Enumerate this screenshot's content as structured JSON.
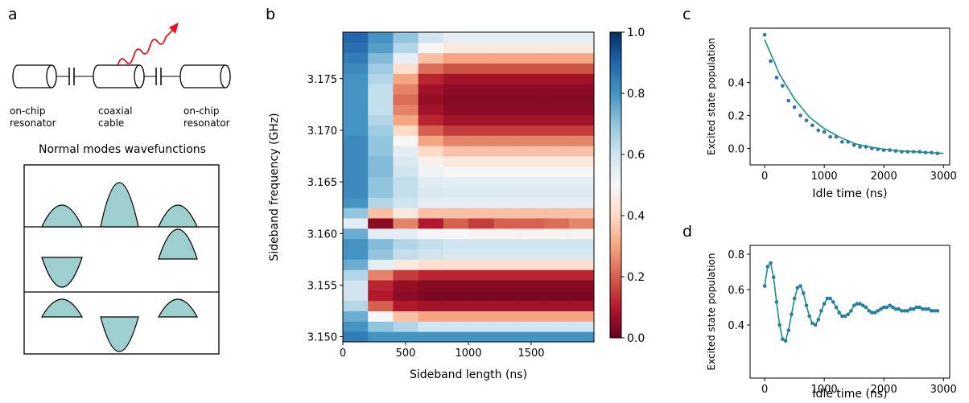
{
  "diagram": {
    "panel_label": "a",
    "labels": [
      "on-chip\nresonator",
      "coaxial\ncable",
      "on-chip\nresonator"
    ],
    "subtitle": "Normal modes wavefunctions"
  },
  "chart_data": [
    {
      "type": "heatmap",
      "panel_label": "b",
      "xlabel": "Sideband length (ns)",
      "ylabel": "Sideband frequency (GHz)",
      "x": [
        100,
        300,
        500,
        700,
        900,
        1100,
        1300,
        1500,
        1700,
        1900
      ],
      "y": [
        3.15,
        3.151,
        3.152,
        3.153,
        3.154,
        3.155,
        3.156,
        3.157,
        3.158,
        3.159,
        3.16,
        3.161,
        3.162,
        3.163,
        3.164,
        3.165,
        3.166,
        3.167,
        3.168,
        3.169,
        3.17,
        3.171,
        3.172,
        3.173,
        3.174,
        3.175,
        3.176,
        3.177,
        3.178,
        3.179
      ],
      "z": [
        [
          0.85,
          0.8,
          0.8,
          0.8,
          0.8,
          0.8,
          0.8,
          0.8,
          0.8,
          0.8
        ],
        [
          0.8,
          0.7,
          0.65,
          0.6,
          0.6,
          0.6,
          0.6,
          0.6,
          0.6,
          0.6
        ],
        [
          0.75,
          0.5,
          0.35,
          0.3,
          0.3,
          0.3,
          0.3,
          0.3,
          0.3,
          0.3
        ],
        [
          0.65,
          0.2,
          0.1,
          0.08,
          0.08,
          0.08,
          0.08,
          0.08,
          0.08,
          0.08
        ],
        [
          0.6,
          0.1,
          0.05,
          0.03,
          0.03,
          0.03,
          0.03,
          0.03,
          0.03,
          0.03
        ],
        [
          0.6,
          0.12,
          0.06,
          0.04,
          0.04,
          0.04,
          0.04,
          0.04,
          0.04,
          0.04
        ],
        [
          0.65,
          0.25,
          0.15,
          0.12,
          0.12,
          0.12,
          0.12,
          0.12,
          0.12,
          0.12
        ],
        [
          0.75,
          0.55,
          0.45,
          0.42,
          0.42,
          0.42,
          0.42,
          0.42,
          0.42,
          0.42
        ],
        [
          0.8,
          0.7,
          0.62,
          0.6,
          0.58,
          0.58,
          0.58,
          0.58,
          0.58,
          0.58
        ],
        [
          0.8,
          0.72,
          0.65,
          0.62,
          0.6,
          0.6,
          0.6,
          0.6,
          0.6,
          0.6
        ],
        [
          0.75,
          0.55,
          0.55,
          0.5,
          0.5,
          0.48,
          0.48,
          0.48,
          0.48,
          0.48
        ],
        [
          0.55,
          0.05,
          0.25,
          0.1,
          0.2,
          0.15,
          0.2,
          0.2,
          0.22,
          0.25
        ],
        [
          0.7,
          0.35,
          0.45,
          0.35,
          0.35,
          0.35,
          0.35,
          0.35,
          0.35,
          0.35
        ],
        [
          0.8,
          0.65,
          0.6,
          0.55,
          0.55,
          0.55,
          0.55,
          0.55,
          0.55,
          0.55
        ],
        [
          0.82,
          0.7,
          0.62,
          0.58,
          0.57,
          0.57,
          0.57,
          0.57,
          0.57,
          0.57
        ],
        [
          0.82,
          0.7,
          0.62,
          0.56,
          0.55,
          0.55,
          0.55,
          0.55,
          0.55,
          0.55
        ],
        [
          0.82,
          0.72,
          0.6,
          0.52,
          0.5,
          0.5,
          0.5,
          0.5,
          0.5,
          0.5
        ],
        [
          0.82,
          0.72,
          0.58,
          0.48,
          0.45,
          0.45,
          0.45,
          0.45,
          0.45,
          0.45
        ],
        [
          0.82,
          0.7,
          0.55,
          0.4,
          0.35,
          0.35,
          0.35,
          0.35,
          0.35,
          0.35
        ],
        [
          0.82,
          0.7,
          0.5,
          0.3,
          0.25,
          0.25,
          0.25,
          0.25,
          0.25,
          0.25
        ],
        [
          0.8,
          0.68,
          0.4,
          0.2,
          0.15,
          0.15,
          0.15,
          0.15,
          0.15,
          0.15
        ],
        [
          0.8,
          0.65,
          0.3,
          0.12,
          0.08,
          0.08,
          0.08,
          0.08,
          0.08,
          0.08
        ],
        [
          0.8,
          0.62,
          0.25,
          0.08,
          0.05,
          0.05,
          0.05,
          0.05,
          0.05,
          0.05
        ],
        [
          0.8,
          0.62,
          0.22,
          0.06,
          0.04,
          0.04,
          0.04,
          0.04,
          0.04,
          0.04
        ],
        [
          0.8,
          0.62,
          0.25,
          0.08,
          0.05,
          0.05,
          0.05,
          0.05,
          0.05,
          0.05
        ],
        [
          0.8,
          0.65,
          0.3,
          0.12,
          0.08,
          0.08,
          0.08,
          0.08,
          0.08,
          0.08
        ],
        [
          0.82,
          0.68,
          0.42,
          0.22,
          0.18,
          0.18,
          0.18,
          0.18,
          0.18,
          0.18
        ],
        [
          0.85,
          0.72,
          0.55,
          0.35,
          0.3,
          0.3,
          0.3,
          0.3,
          0.3,
          0.3
        ],
        [
          0.88,
          0.78,
          0.65,
          0.5,
          0.45,
          0.45,
          0.45,
          0.45,
          0.45,
          0.45
        ],
        [
          0.9,
          0.8,
          0.7,
          0.6,
          0.55,
          0.55,
          0.55,
          0.55,
          0.55,
          0.55
        ]
      ],
      "xlim": [
        0,
        2000
      ],
      "ylim": [
        3.1495,
        3.1795
      ],
      "xticks": [
        0,
        500,
        1000,
        1500
      ],
      "yticks": [
        {
          "value": 3.15,
          "label": "3.150"
        },
        {
          "value": 3.155,
          "label": "3.155"
        },
        {
          "value": 3.16,
          "label": "3.160"
        },
        {
          "value": 3.165,
          "label": "3.165"
        },
        {
          "value": 3.17,
          "label": "3.170"
        },
        {
          "value": 3.175,
          "label": "3.175"
        }
      ],
      "zlim": [
        0,
        1
      ],
      "zticks": [
        {
          "value": 0,
          "label": "0.0"
        },
        {
          "value": 0.2,
          "label": "0.2"
        },
        {
          "value": 0.4,
          "label": "0.4"
        },
        {
          "value": 0.6,
          "label": "0.6"
        },
        {
          "value": 0.8,
          "label": "0.8"
        },
        {
          "value": 1,
          "label": "1.0"
        }
      ],
      "colorscale": [
        "#67001f",
        "#b2182b",
        "#d6604d",
        "#f4a582",
        "#fddbc7",
        "#f7f7f7",
        "#d1e5f0",
        "#92c5de",
        "#4393c3",
        "#2166ac",
        "#053061"
      ]
    },
    {
      "type": "scatter",
      "panel_label": "c",
      "xlabel": "Idle time (ns)",
      "ylabel": "Excited state population",
      "xlim": [
        -245,
        3105
      ],
      "ylim": [
        -0.1,
        0.73
      ],
      "xticks": [
        0,
        1000,
        2000,
        3000
      ],
      "yticks": [
        {
          "value": 0,
          "label": "0.0"
        },
        {
          "value": 0.2,
          "label": "0.2"
        },
        {
          "value": 0.4,
          "label": "0.4"
        }
      ],
      "series": [
        {
          "mode": "markers",
          "color": "#2f6fbf",
          "x": [
            0,
            100,
            200,
            300,
            400,
            500,
            600,
            700,
            800,
            900,
            1000,
            1100,
            1200,
            1300,
            1400,
            1500,
            1600,
            1700,
            1800,
            1900,
            2000,
            2100,
            2200,
            2300,
            2400,
            2500,
            2600,
            2700,
            2800,
            2900
          ],
          "values": [
            0.69,
            0.53,
            0.43,
            0.38,
            0.29,
            0.25,
            0.2,
            0.17,
            0.14,
            0.11,
            0.1,
            0.07,
            0.07,
            0.04,
            0.04,
            0.02,
            0.01,
            0.01,
            0,
            -0.005,
            -0.01,
            -0.01,
            -0.015,
            -0.02,
            -0.02,
            -0.02,
            -0.02,
            -0.025,
            -0.025,
            -0.03
          ]
        },
        {
          "mode": "line",
          "color": "#14937a",
          "x": [
            0,
            250,
            500,
            750,
            1000,
            1250,
            1500,
            1750,
            2000,
            2250,
            2500,
            2750,
            3000
          ],
          "values": [
            0.66,
            0.45,
            0.3,
            0.19,
            0.12,
            0.07,
            0.03,
            0.01,
            -0.005,
            -0.015,
            -0.02,
            -0.025,
            -0.03
          ]
        }
      ]
    },
    {
      "type": "scatter",
      "panel_label": "d",
      "xlabel": "Idle time (ns)",
      "ylabel": "Excited state population",
      "xlim": [
        -245,
        3105
      ],
      "ylim": [
        0.1,
        0.85
      ],
      "xticks": [
        0,
        1000,
        2000,
        3000
      ],
      "yticks": [
        {
          "value": 0.4,
          "label": "0.4"
        },
        {
          "value": 0.6,
          "label": "0.6"
        },
        {
          "value": 0.8,
          "label": "0.8"
        }
      ],
      "series": [
        {
          "mode": "markers",
          "color": "#2f6fbf",
          "x": [
            0,
            50,
            100,
            150,
            200,
            250,
            300,
            350,
            400,
            450,
            500,
            550,
            600,
            650,
            700,
            750,
            800,
            850,
            900,
            950,
            1000,
            1050,
            1100,
            1150,
            1200,
            1250,
            1300,
            1350,
            1400,
            1450,
            1500,
            1550,
            1600,
            1650,
            1700,
            1750,
            1800,
            1850,
            1900,
            1950,
            2000,
            2050,
            2100,
            2150,
            2200,
            2250,
            2300,
            2350,
            2400,
            2450,
            2500,
            2550,
            2600,
            2650,
            2700,
            2750,
            2800,
            2850,
            2900
          ],
          "values": [
            0.62,
            0.73,
            0.75,
            0.67,
            0.53,
            0.4,
            0.32,
            0.31,
            0.37,
            0.46,
            0.55,
            0.61,
            0.62,
            0.58,
            0.51,
            0.45,
            0.41,
            0.4,
            0.43,
            0.48,
            0.52,
            0.55,
            0.55,
            0.53,
            0.5,
            0.47,
            0.45,
            0.45,
            0.46,
            0.48,
            0.51,
            0.52,
            0.52,
            0.51,
            0.5,
            0.48,
            0.47,
            0.47,
            0.48,
            0.49,
            0.5,
            0.5,
            0.51,
            0.5,
            0.49,
            0.49,
            0.48,
            0.48,
            0.48,
            0.49,
            0.49,
            0.5,
            0.5,
            0.49,
            0.49,
            0.49,
            0.48,
            0.48,
            0.48
          ]
        },
        {
          "mode": "line",
          "color": "#14937a",
          "x": [
            0,
            50,
            100,
            150,
            200,
            250,
            300,
            350,
            400,
            450,
            500,
            550,
            600,
            650,
            700,
            750,
            800,
            850,
            900,
            950,
            1000,
            1050,
            1100,
            1150,
            1200,
            1250,
            1300,
            1350,
            1400,
            1450,
            1500,
            1550,
            1600,
            1650,
            1700,
            1750,
            1800,
            1850,
            1900,
            1950,
            2000,
            2050,
            2100,
            2150,
            2200,
            2250,
            2300,
            2350,
            2400,
            2450,
            2500,
            2550,
            2600,
            2650,
            2700,
            2750,
            2800,
            2850,
            2900
          ],
          "values": [
            0.62,
            0.73,
            0.75,
            0.67,
            0.53,
            0.4,
            0.32,
            0.31,
            0.37,
            0.46,
            0.55,
            0.61,
            0.62,
            0.58,
            0.51,
            0.45,
            0.41,
            0.4,
            0.43,
            0.48,
            0.52,
            0.55,
            0.55,
            0.53,
            0.5,
            0.47,
            0.45,
            0.45,
            0.46,
            0.48,
            0.51,
            0.52,
            0.52,
            0.51,
            0.5,
            0.48,
            0.47,
            0.47,
            0.48,
            0.49,
            0.5,
            0.5,
            0.51,
            0.5,
            0.49,
            0.49,
            0.48,
            0.48,
            0.48,
            0.49,
            0.49,
            0.5,
            0.5,
            0.49,
            0.49,
            0.49,
            0.48,
            0.48,
            0.48
          ]
        }
      ]
    }
  ]
}
